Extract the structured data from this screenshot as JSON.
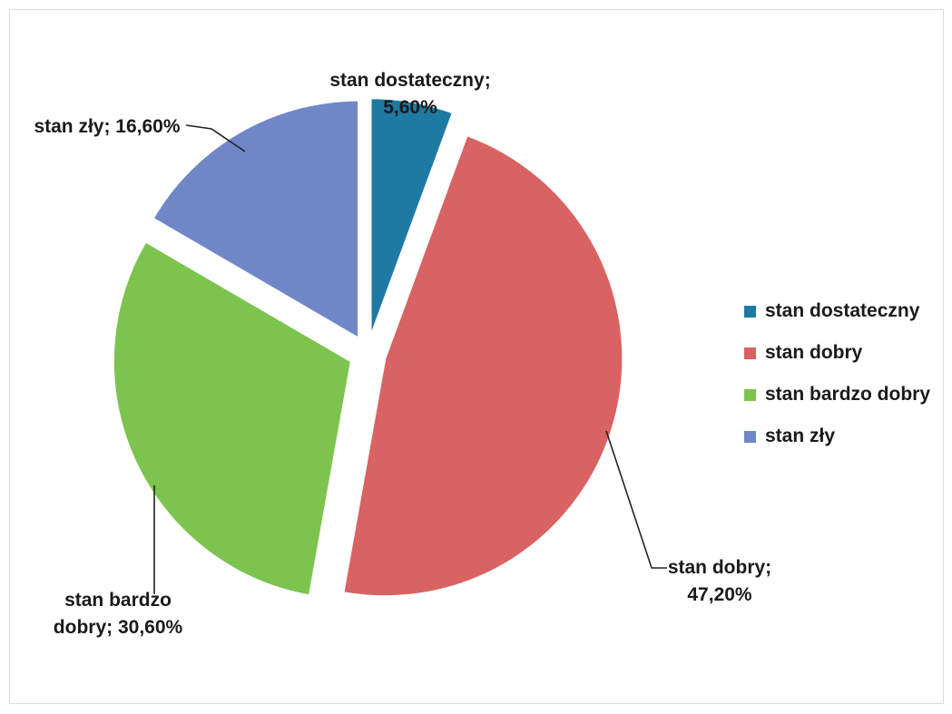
{
  "chart_data": {
    "type": "pie",
    "exploded": true,
    "legend_position": "right",
    "slices": [
      {
        "name": "stan dostateczny",
        "value": 5.6,
        "label_lines": [
          "stan dostateczny;",
          "5,60%"
        ],
        "color": "#1f7aa3"
      },
      {
        "name": "stan dobry",
        "value": 47.2,
        "label_lines": [
          "stan dobry;",
          "47,20%"
        ],
        "color": "#d96262"
      },
      {
        "name": "stan bardzo dobry",
        "value": 30.6,
        "label_lines": [
          "stan bardzo",
          "dobry; 30,60%"
        ],
        "color": "#7cc44e"
      },
      {
        "name": "stan zły",
        "value": 16.6,
        "label_lines": [
          "stan zły; 16,60%"
        ],
        "color": "#6f87c7"
      }
    ]
  }
}
